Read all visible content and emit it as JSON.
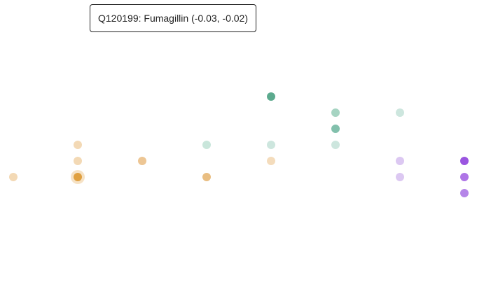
{
  "tooltip": {
    "text": "Q120199: Fumagillin (-0.03, -0.02)"
  },
  "chart_data": {
    "type": "scatter",
    "title": "",
    "xlabel": "",
    "ylabel": "",
    "grid": false,
    "axes_visible": false,
    "x_step": 1,
    "y_step": 1,
    "highlighted_point": {
      "x": 1,
      "y": 0,
      "color": "#E0A040",
      "label": "Q120199: Fumagillin (-0.03, -0.02)"
    },
    "points": [
      {
        "x": 0,
        "y": 0,
        "color": "#F3D9B5"
      },
      {
        "x": 1,
        "y": 2,
        "color": "#F3D9B5"
      },
      {
        "x": 1,
        "y": 1,
        "color": "#F3D9B5"
      },
      {
        "x": 1,
        "y": 0,
        "color": "#E0A040"
      },
      {
        "x": 2,
        "y": 1,
        "color": "#EDC694"
      },
      {
        "x": 3,
        "y": 2,
        "color": "#C9E6DB"
      },
      {
        "x": 3,
        "y": 0,
        "color": "#E9BE82"
      },
      {
        "x": 4,
        "y": 5,
        "color": "#5CAA8E"
      },
      {
        "x": 4,
        "y": 2,
        "color": "#CDE6DE"
      },
      {
        "x": 4,
        "y": 1,
        "color": "#F4DCBC"
      },
      {
        "x": 5,
        "y": 4,
        "color": "#A6D4C2"
      },
      {
        "x": 5,
        "y": 3,
        "color": "#82C0AC"
      },
      {
        "x": 5,
        "y": 2,
        "color": "#CDE6DE"
      },
      {
        "x": 6,
        "y": 4,
        "color": "#CDE6DE"
      },
      {
        "x": 6,
        "y": 1,
        "color": "#DCC8F2"
      },
      {
        "x": 6,
        "y": 0,
        "color": "#DCC8F2"
      },
      {
        "x": 7,
        "y": 1,
        "color": "#9A55E0"
      },
      {
        "x": 7,
        "y": 0,
        "color": "#AE75E6"
      },
      {
        "x": 7,
        "y": -1,
        "color": "#B585E8"
      }
    ]
  }
}
